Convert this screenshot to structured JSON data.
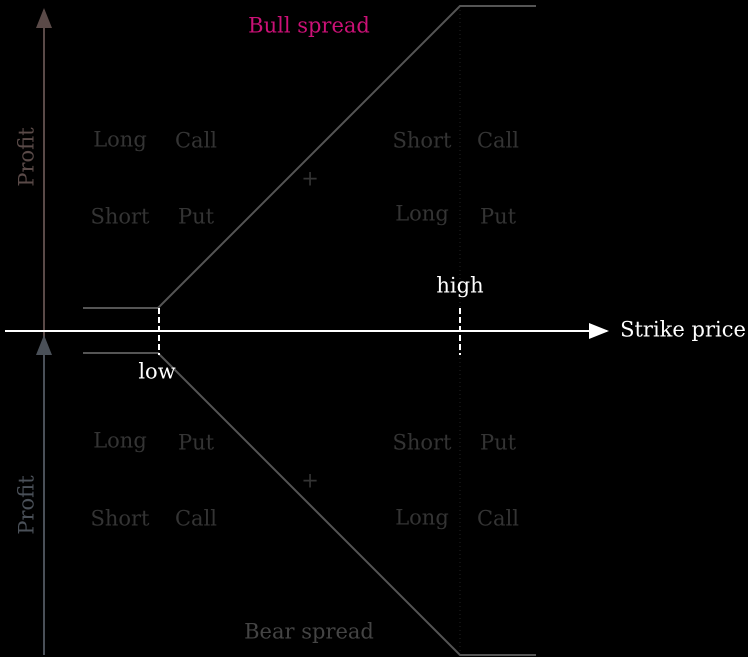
{
  "x_axis": {
    "label": "Strike price",
    "strikes": [
      "low",
      "high"
    ]
  },
  "bull": {
    "title": "Bull spread",
    "axis_label": "Profit",
    "left": [
      [
        "Long",
        "Call"
      ],
      [
        "Short",
        "Put"
      ]
    ],
    "right": [
      [
        "Short",
        "Call"
      ],
      [
        "Long",
        "Put"
      ]
    ],
    "combine": "+"
  },
  "bear": {
    "title": "Bear spread",
    "axis_label": "Profit",
    "left": [
      [
        "Long",
        "Put"
      ],
      [
        "Short",
        "Call"
      ]
    ],
    "right": [
      [
        "Short",
        "Put"
      ],
      [
        "Long",
        "Call"
      ]
    ],
    "combine": "+"
  }
}
